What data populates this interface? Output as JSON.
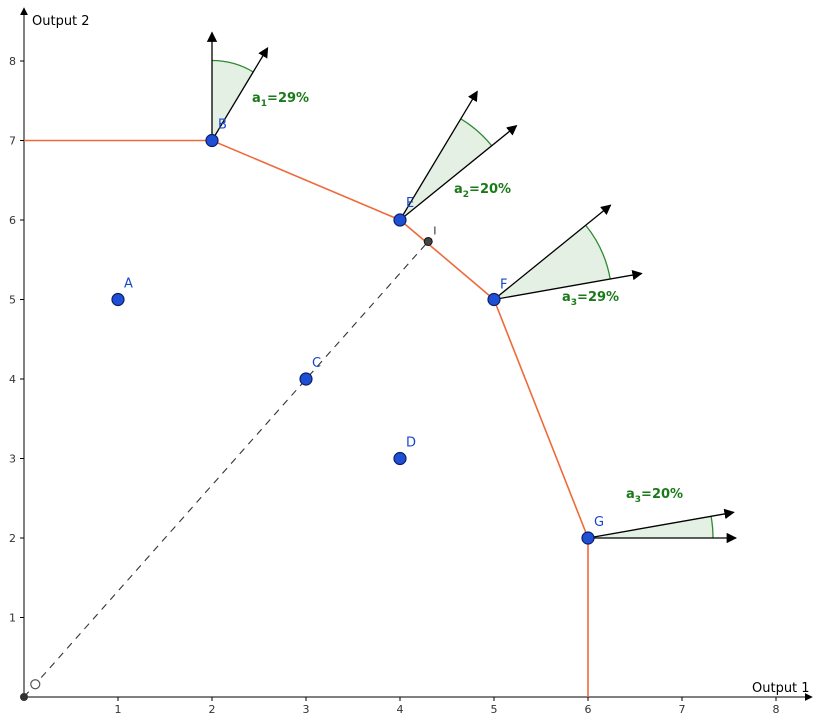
{
  "axes": {
    "xlabel": "Output 1",
    "ylabel": "Output 2",
    "xticks": [
      "1",
      "2",
      "3",
      "4",
      "5",
      "6",
      "7",
      "8"
    ],
    "yticks": [
      "1",
      "2",
      "3",
      "4",
      "5",
      "6",
      "7",
      "8"
    ],
    "xlim": [
      0,
      8.5
    ],
    "ylim": [
      0,
      8.5
    ]
  },
  "frontier": [
    [
      0,
      7
    ],
    [
      2,
      7
    ],
    [
      4,
      6
    ],
    [
      5,
      5
    ],
    [
      6,
      2
    ],
    [
      6,
      0
    ]
  ],
  "ray": {
    "from": [
      0,
      0
    ],
    "to": [
      4.3,
      5.73
    ]
  },
  "points": [
    {
      "name": "A",
      "x": 1,
      "y": 5
    },
    {
      "name": "B",
      "x": 2,
      "y": 7
    },
    {
      "name": "C",
      "x": 3,
      "y": 4
    },
    {
      "name": "D",
      "x": 4,
      "y": 3
    },
    {
      "name": "E",
      "x": 4,
      "y": 6
    },
    {
      "name": "F",
      "x": 5,
      "y": 5
    },
    {
      "name": "G",
      "x": 6,
      "y": 2
    }
  ],
  "projection_point": {
    "name": "I",
    "x": 4.3,
    "y": 5.73
  },
  "angles": [
    {
      "point": "B",
      "label_main": "a",
      "label_sub": "1",
      "label_rest": "=29%"
    },
    {
      "point": "E",
      "label_main": "a",
      "label_sub": "2",
      "label_rest": "=20%"
    },
    {
      "point": "F",
      "label_main": "a",
      "label_sub": "3",
      "label_rest": "=29%"
    },
    {
      "point": "G",
      "label_main": "a",
      "label_sub": "3",
      "label_rest": "=20%"
    }
  ],
  "colors": {
    "frontier": "#ef6a3a",
    "point_fill": "#1f4fd4",
    "point_stroke": "#0a1f66",
    "angle_fill": "#e3f0e3",
    "angle_stroke": "#2f8a2f"
  }
}
